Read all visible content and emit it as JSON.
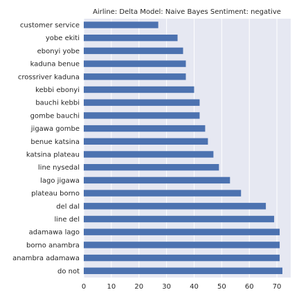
{
  "chart_data": {
    "type": "bar",
    "orientation": "horizontal",
    "title": "Airline: Delta Model: Naive Bayes Sentiment: negative",
    "xlabel": "",
    "ylabel": "",
    "categories": [
      "customer service",
      "yobe ekiti",
      "ebonyi yobe",
      "kaduna benue",
      "crossriver kaduna",
      "kebbi ebonyi",
      "bauchi kebbi",
      "gombe bauchi",
      "jigawa gombe",
      "benue katsina",
      "katsina plateau",
      "line nysedal",
      "lago jigawa",
      "plateau borno",
      "del dal",
      "line del",
      "adamawa lago",
      "borno anambra",
      "anambra adamawa",
      "do not"
    ],
    "values": [
      27,
      34,
      36,
      37,
      37,
      40,
      42,
      42,
      44,
      45,
      47,
      49,
      53,
      57,
      66,
      69,
      71,
      71,
      71,
      72
    ],
    "xlim": [
      0,
      75
    ],
    "xticks": [
      0,
      10,
      20,
      30,
      40,
      50,
      60,
      70
    ],
    "grid": true,
    "legend": "none",
    "colors": {
      "bar": "#4c72b0",
      "plot_background": "#e6e8f2",
      "grid": "#ffffff",
      "text": "#262626"
    }
  }
}
